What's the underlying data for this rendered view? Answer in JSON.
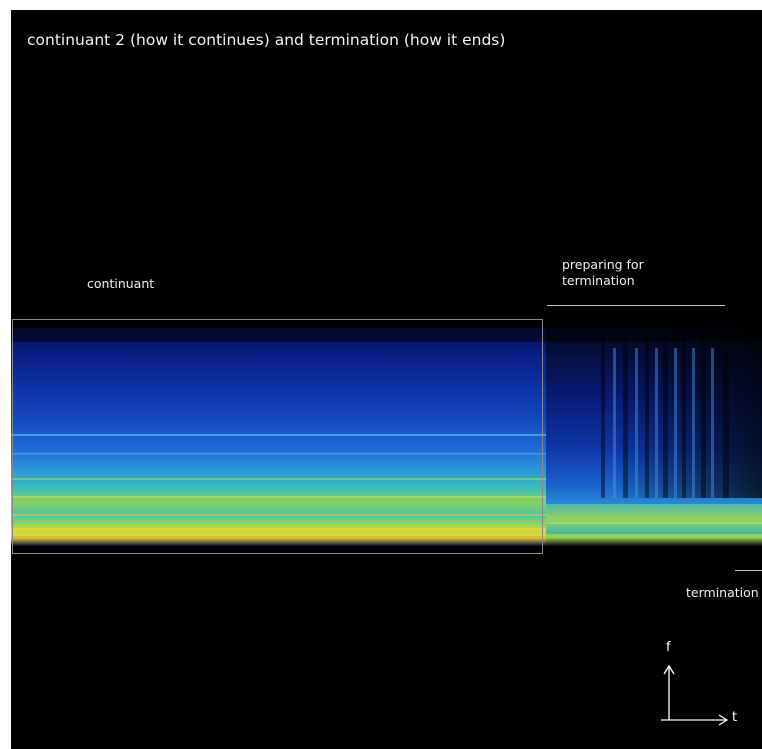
{
  "title": "continuant 2 (how it continues) and termination (how it ends)",
  "labels": {
    "continuant": "continuant",
    "preparing_line1": "preparing for",
    "preparing_line2": "termination",
    "termination": "termination"
  },
  "axes": {
    "frequency": "f",
    "time": "t"
  },
  "colors": {
    "background": "#000000",
    "spectro_low": "#0a1e8c",
    "spectro_mid": "#2f8fe0",
    "spectro_high": "#e6e23a"
  }
}
